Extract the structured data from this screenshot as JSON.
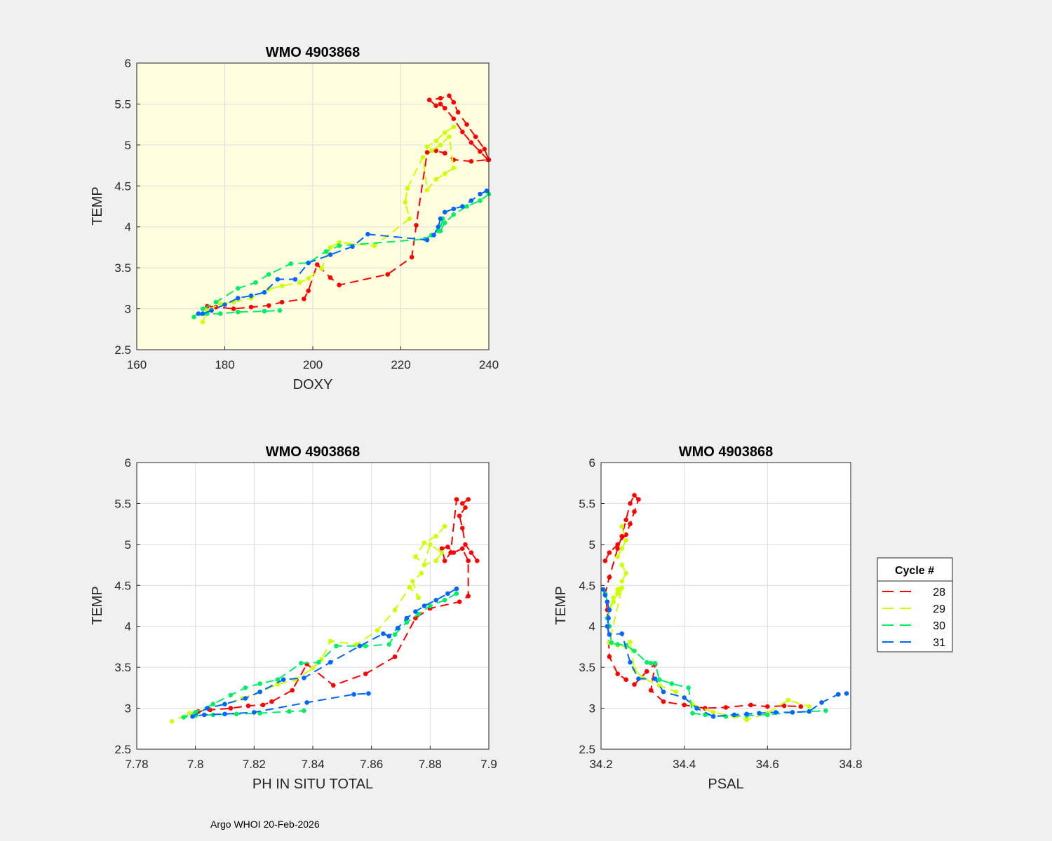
{
  "footer": "Argo WHOI 20-Feb-2026",
  "legend": {
    "title": "Cycle #"
  },
  "colors": {
    "28": "#ff0000",
    "29": "#ccff00",
    "30": "#00ee66",
    "31": "#0066ff"
  },
  "chart_data": [
    {
      "type": "line",
      "id": "doxy",
      "title": "WMO 4903868",
      "xlabel": "DOXY",
      "ylabel": "TEMP",
      "xlim": [
        160,
        240
      ],
      "ylim": [
        2.5,
        6
      ],
      "xticks": [
        "160",
        "180",
        "200",
        "220",
        "240"
      ],
      "yticks": [
        "2.5",
        "3",
        "3.5",
        "4",
        "4.5",
        "5",
        "5.5",
        "6"
      ],
      "background": "#ffffe0",
      "series": [
        {
          "name": "28",
          "x": [
            239.8,
            238,
            236,
            234,
            232,
            230,
            229,
            228,
            226.5,
            229,
            231,
            232,
            233,
            235,
            237,
            239,
            240,
            236,
            232,
            230,
            228,
            226,
            223.5,
            222.5,
            217,
            206,
            204,
            201,
            199,
            198,
            193,
            190,
            186,
            182,
            178,
            176
          ],
          "y": [
            4.82,
            4.92,
            5.03,
            5.16,
            5.32,
            5.45,
            5.5,
            5.48,
            5.55,
            5.57,
            5.6,
            5.52,
            5.4,
            5.25,
            5.1,
            4.95,
            4.82,
            4.8,
            4.82,
            4.9,
            4.93,
            4.91,
            4.02,
            3.63,
            3.42,
            3.29,
            3.38,
            3.54,
            3.22,
            3.12,
            3.08,
            3.04,
            3.02,
            3.0,
            3.02,
            3.03
          ]
        },
        {
          "name": "29",
          "x": [
            232,
            230,
            228,
            226,
            227,
            229,
            231,
            232,
            230,
            228,
            226,
            225,
            221.5,
            221,
            222,
            214,
            206,
            204,
            202,
            199,
            197,
            193,
            190,
            186,
            182,
            179,
            176,
            175
          ],
          "y": [
            5.22,
            5.15,
            5.05,
            4.98,
            4.93,
            5.0,
            5.1,
            4.72,
            4.65,
            4.58,
            4.45,
            4.85,
            4.47,
            4.3,
            4.1,
            3.77,
            3.81,
            3.75,
            3.49,
            3.37,
            3.32,
            3.28,
            3.24,
            3.13,
            3.08,
            3.06,
            2.98,
            2.84
          ]
        },
        {
          "name": "30",
          "x": [
            240,
            238,
            235,
            232,
            230,
            229,
            229.5,
            228.5,
            227,
            225.5,
            206,
            203,
            199,
            195,
            190,
            187,
            183,
            178,
            175,
            173,
            176,
            179,
            183,
            189,
            192.5
          ],
          "y": [
            4.4,
            4.32,
            4.25,
            4.15,
            4.05,
            3.95,
            4.1,
            3.95,
            3.9,
            3.85,
            3.77,
            3.7,
            3.56,
            3.55,
            3.42,
            3.32,
            3.25,
            3.08,
            3.0,
            2.9,
            2.94,
            2.94,
            2.96,
            2.97,
            2.98
          ]
        },
        {
          "name": "31",
          "x": [
            239.5,
            238,
            236,
            234,
            232,
            230,
            229,
            228.5,
            227.5,
            226,
            212.5,
            209,
            204,
            199,
            196,
            192,
            189,
            186,
            183,
            180,
            177,
            175,
            174
          ],
          "y": [
            4.44,
            4.4,
            4.32,
            4.25,
            4.22,
            4.18,
            4.1,
            4.0,
            3.9,
            3.84,
            3.91,
            3.76,
            3.66,
            3.56,
            3.36,
            3.36,
            3.2,
            3.16,
            3.13,
            3.05,
            2.98,
            2.94,
            2.94
          ]
        }
      ]
    },
    {
      "type": "line",
      "id": "ph",
      "title": "WMO 4903868",
      "xlabel": "PH IN SITU TOTAL",
      "ylabel": "TEMP",
      "xlim": [
        7.78,
        7.9
      ],
      "ylim": [
        2.5,
        6
      ],
      "xticks": [
        "7.78",
        "7.8",
        "7.82",
        "7.84",
        "7.86",
        "7.88",
        "7.9"
      ],
      "yticks": [
        "2.5",
        "3",
        "3.5",
        "4",
        "4.5",
        "5",
        "5.5",
        "6"
      ],
      "background": "#ffffff",
      "series": [
        {
          "name": "28",
          "x": [
            7.896,
            7.894,
            7.892,
            7.891,
            7.89,
            7.892,
            7.893,
            7.891,
            7.889,
            7.887,
            7.885,
            7.884,
            7.886,
            7.888,
            7.891,
            7.893,
            7.893,
            7.89,
            7.88,
            7.875,
            7.868,
            7.858,
            7.847,
            7.838,
            7.833,
            7.826,
            7.823,
            7.818,
            7.812,
            7.805,
            7.801
          ],
          "y": [
            4.8,
            4.9,
            5.0,
            5.2,
            5.35,
            5.45,
            5.55,
            5.5,
            5.55,
            4.9,
            4.8,
            4.95,
            4.97,
            4.9,
            4.95,
            4.8,
            4.37,
            4.3,
            4.22,
            4.1,
            3.63,
            3.42,
            3.28,
            3.54,
            3.22,
            3.08,
            3.04,
            3.03,
            3.0,
            2.98,
            2.96
          ]
        },
        {
          "name": "29",
          "x": [
            7.885,
            7.882,
            7.878,
            7.875,
            7.878,
            7.882,
            7.884,
            7.88,
            7.877,
            7.874,
            7.876,
            7.873,
            7.868,
            7.862,
            7.855,
            7.846,
            7.843,
            7.84,
            7.834,
            7.828,
            7.822,
            7.816,
            7.81,
            7.804,
            7.798,
            7.792
          ],
          "y": [
            5.22,
            5.1,
            5.02,
            4.85,
            4.75,
            4.8,
            4.9,
            5.0,
            4.65,
            4.55,
            4.35,
            4.48,
            4.2,
            3.95,
            3.78,
            3.82,
            3.6,
            3.49,
            3.35,
            3.29,
            3.2,
            3.12,
            3.05,
            3.0,
            2.94,
            2.84
          ]
        },
        {
          "name": "30",
          "x": [
            7.889,
            7.885,
            7.88,
            7.876,
            7.872,
            7.868,
            7.866,
            7.858,
            7.848,
            7.842,
            7.836,
            7.828,
            7.822,
            7.817,
            7.812,
            7.806,
            7.8,
            7.796,
            7.8,
            7.806,
            7.814,
            7.822,
            7.832,
            7.837
          ],
          "y": [
            4.4,
            4.32,
            4.25,
            4.15,
            4.05,
            3.9,
            3.78,
            3.76,
            3.76,
            3.56,
            3.55,
            3.35,
            3.3,
            3.25,
            3.16,
            3.05,
            2.95,
            2.89,
            2.91,
            2.92,
            2.93,
            2.94,
            2.96,
            2.97
          ]
        },
        {
          "name": "31",
          "x": [
            7.889,
            7.886,
            7.882,
            7.878,
            7.875,
            7.872,
            7.869,
            7.866,
            7.864,
            7.856,
            7.846,
            7.837,
            7.83,
            7.822,
            7.817,
            7.81,
            7.804,
            7.799,
            7.803,
            7.81,
            7.82,
            7.838,
            7.854,
            7.859
          ],
          "y": [
            4.46,
            4.4,
            4.32,
            4.25,
            4.18,
            4.1,
            3.98,
            3.88,
            3.91,
            3.76,
            3.56,
            3.37,
            3.35,
            3.2,
            3.12,
            3.05,
            3.0,
            2.9,
            2.92,
            2.93,
            2.95,
            3.07,
            3.17,
            3.18
          ]
        }
      ]
    },
    {
      "type": "line",
      "id": "psal",
      "title": "WMO 4903868",
      "xlabel": "PSAL",
      "ylabel": "TEMP",
      "xlim": [
        34.2,
        34.8
      ],
      "ylim": [
        2.5,
        6
      ],
      "xticks": [
        "34.2",
        "34.4",
        "34.6",
        "34.8"
      ],
      "yticks": [
        "2.5",
        "3",
        "3.5",
        "4",
        "4.5",
        "5",
        "5.5",
        "6"
      ],
      "background": "#ffffff",
      "series": [
        {
          "name": "28",
          "x": [
            34.21,
            34.22,
            34.24,
            34.26,
            34.27,
            34.28,
            34.29,
            34.28,
            34.27,
            34.26,
            34.25,
            34.24,
            34.22,
            34.21,
            34.215,
            34.22,
            34.24,
            34.26,
            34.28,
            34.31,
            34.33,
            34.32,
            34.35,
            34.4,
            34.45,
            34.5,
            34.56,
            34.6,
            34.64,
            34.68
          ],
          "y": [
            4.8,
            4.9,
            5.0,
            5.12,
            5.25,
            5.4,
            5.55,
            5.6,
            5.5,
            5.3,
            5.1,
            4.95,
            4.6,
            4.4,
            4.2,
            3.63,
            3.42,
            3.35,
            3.29,
            3.45,
            3.54,
            3.22,
            3.08,
            3.04,
            3.0,
            3.01,
            3.04,
            3.02,
            3.03,
            3.02
          ]
        },
        {
          "name": "29",
          "x": [
            34.25,
            34.26,
            34.25,
            34.24,
            34.25,
            34.26,
            34.25,
            34.24,
            34.23,
            34.22,
            34.23,
            34.24,
            34.25,
            34.22,
            34.24,
            34.26,
            34.27,
            34.28,
            34.3,
            34.34,
            34.38,
            34.42,
            34.47,
            34.52,
            34.55,
            34.6,
            34.65,
            34.7
          ],
          "y": [
            5.22,
            5.05,
            4.95,
            4.85,
            4.75,
            4.65,
            4.55,
            4.45,
            4.35,
            4.2,
            4.3,
            4.4,
            4.47,
            3.8,
            3.77,
            3.75,
            3.81,
            3.48,
            3.37,
            3.28,
            3.2,
            3.05,
            2.95,
            2.9,
            2.86,
            2.94,
            3.1,
            3.02
          ]
        },
        {
          "name": "30",
          "x": [
            34.21,
            34.215,
            34.22,
            34.215,
            34.22,
            34.225,
            34.24,
            34.26,
            34.28,
            34.31,
            34.32,
            34.33,
            34.34,
            34.37,
            34.41,
            34.42,
            34.45,
            34.5,
            34.55,
            34.6,
            34.66,
            34.7,
            34.74
          ],
          "y": [
            4.4,
            4.3,
            4.2,
            4.1,
            4.0,
            3.8,
            3.78,
            3.77,
            3.7,
            3.56,
            3.55,
            3.55,
            3.35,
            3.3,
            3.25,
            2.94,
            2.92,
            2.9,
            2.91,
            2.92,
            2.95,
            2.96,
            2.97
          ]
        },
        {
          "name": "31",
          "x": [
            34.205,
            34.21,
            34.215,
            34.22,
            34.218,
            34.215,
            34.22,
            34.25,
            34.27,
            34.29,
            34.33,
            34.35,
            34.4,
            34.43,
            34.47,
            34.52,
            34.55,
            34.58,
            34.62,
            34.66,
            34.7,
            34.73,
            34.77,
            34.79
          ],
          "y": [
            4.45,
            4.38,
            4.3,
            4.2,
            4.1,
            4.0,
            3.9,
            3.91,
            3.56,
            3.36,
            3.36,
            3.2,
            3.13,
            3.0,
            2.9,
            2.92,
            2.93,
            2.94,
            2.95,
            2.95,
            2.96,
            3.07,
            3.17,
            3.18
          ]
        }
      ]
    }
  ]
}
